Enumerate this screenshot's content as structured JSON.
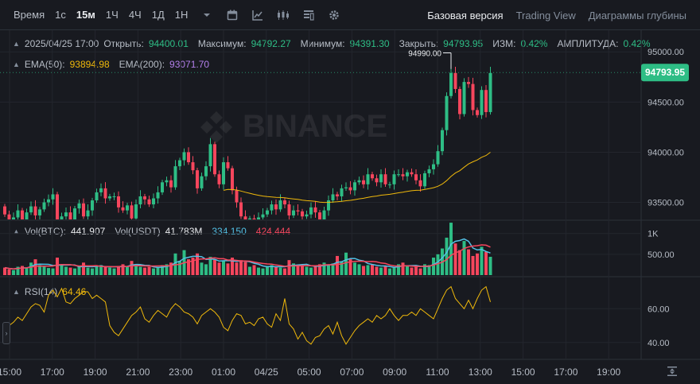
{
  "toolbar": {
    "time_label": "Время",
    "intervals": [
      "1с",
      "15м",
      "1Ч",
      "4Ч",
      "1Д",
      "1Н"
    ],
    "active_interval": "15м",
    "views": [
      "Базовая версия",
      "Trading View",
      "Диаграммы глубины"
    ],
    "active_view": "Базовая версия",
    "icons": [
      "chevron-down-icon",
      "calendar-icon",
      "indicators-icon",
      "candle-type-icon",
      "layout-icon",
      "settings-icon"
    ]
  },
  "ohlc": {
    "date": "2025/04/25 17:00",
    "open_label": "Открыть:",
    "open": "94400.01",
    "high_label": "Максимум:",
    "high": "94792.27",
    "low_label": "Минимум:",
    "low": "94391.30",
    "close_label": "Закрыть:",
    "close": "94793.95",
    "change_label": "ИЗМ:",
    "change": "0.42%",
    "amp_label": "АМПЛИТУДА:",
    "amp": "0.42%"
  },
  "ema": {
    "ema50_label": "EMA(50):",
    "ema50": "93894.98",
    "ema200_label": "EMA(200):",
    "ema200": "93071.70"
  },
  "volume": {
    "label": "Vol(BTC):",
    "btc": "441.907",
    "usdt_label": "Vol(USDT)",
    "usdt": "41.783M",
    "ma1": "334.150",
    "ma2": "424.444"
  },
  "rsi": {
    "label": "RSI(14)",
    "value": "64.46"
  },
  "colors": {
    "up": "#2ebd85",
    "down": "#f6465d",
    "ema50": "#f0b90b",
    "bg": "#181a20",
    "grid": "#23262d"
  },
  "watermark": "BINANCE",
  "chart_data": {
    "type": "candlestick",
    "price_axis": {
      "ticks": [
        93500,
        94000,
        94500,
        95000
      ],
      "labels": [
        "93500.00",
        "94000.00",
        "94500.00",
        "95000.00"
      ],
      "range": [
        93330,
        95200
      ]
    },
    "current_price": "94793.95",
    "high_marker": "94990.00",
    "high_marker_value": 94990,
    "volume_axis": {
      "labels": [
        "500.00",
        "1K"
      ],
      "ticks": [
        500,
        1000
      ],
      "range": [
        0,
        1300
      ]
    },
    "rsi_axis": {
      "labels": [
        "40.00",
        "60.00"
      ],
      "ticks": [
        40,
        60
      ],
      "range": [
        30,
        78
      ]
    },
    "time_labels": [
      "15:00",
      "17:00",
      "19:00",
      "21:00",
      "23:00",
      "01:00",
      "04/25",
      "05:00",
      "07:00",
      "09:00",
      "11:00",
      "13:00",
      "15:00",
      "17:00",
      "19:00"
    ],
    "candles_close": [
      93380,
      93310,
      93350,
      93420,
      93330,
      93400,
      93460,
      93370,
      93430,
      93500,
      93530,
      93580,
      93330,
      93360,
      93400,
      93300,
      93440,
      93490,
      93360,
      93420,
      93520,
      93600,
      93640,
      93540,
      93560,
      93560,
      93450,
      93420,
      93470,
      93340,
      93480,
      93560,
      93530,
      93480,
      93540,
      93600,
      93700,
      93720,
      93650,
      93860,
      93920,
      94000,
      93900,
      93820,
      93640,
      93760,
      93860,
      94080,
      93780,
      93680,
      93900,
      93840,
      93620,
      93500,
      93360,
      93320,
      93340,
      93300,
      93350,
      93380,
      93420,
      93480,
      93430,
      93520,
      93480,
      93370,
      93420,
      93410,
      93360,
      93380,
      93450,
      93400,
      93330,
      93420,
      93520,
      93580,
      93560,
      93640,
      93650,
      93620,
      93700,
      93720,
      93680,
      93780,
      93740,
      93700,
      93780,
      93680,
      93680,
      93780,
      93780,
      93760,
      93800,
      93780,
      93720,
      93660,
      93790,
      93830,
      93880,
      94010,
      94220,
      94560,
      94790,
      94630,
      94380,
      94700,
      94680,
      94420,
      94370,
      94620,
      94400,
      94790
    ],
    "candles_open": [
      93460,
      93380,
      93310,
      93350,
      93420,
      93330,
      93400,
      93460,
      93370,
      93430,
      93500,
      93530,
      93580,
      93330,
      93360,
      93400,
      93300,
      93440,
      93490,
      93360,
      93420,
      93520,
      93600,
      93640,
      93540,
      93560,
      93560,
      93450,
      93420,
      93470,
      93340,
      93480,
      93560,
      93530,
      93480,
      93540,
      93600,
      93700,
      93720,
      93650,
      93860,
      93920,
      94000,
      93900,
      93820,
      93640,
      93760,
      93860,
      94080,
      93780,
      93680,
      93900,
      93840,
      93620,
      93500,
      93360,
      93320,
      93340,
      93300,
      93350,
      93380,
      93420,
      93480,
      93430,
      93520,
      93480,
      93370,
      93420,
      93410,
      93360,
      93380,
      93450,
      93400,
      93330,
      93420,
      93520,
      93580,
      93560,
      93640,
      93650,
      93620,
      93700,
      93720,
      93680,
      93780,
      93740,
      93700,
      93780,
      93680,
      93680,
      93780,
      93780,
      93760,
      93800,
      93780,
      93720,
      93660,
      93790,
      93830,
      93880,
      94010,
      94220,
      94560,
      94790,
      94630,
      94380,
      94700,
      94680,
      94420,
      94370,
      94620,
      94400
    ],
    "volume": [
      180,
      140,
      120,
      200,
      220,
      180,
      300,
      380,
      240,
      200,
      170,
      160,
      420,
      250,
      200,
      180,
      160,
      200,
      300,
      180,
      160,
      220,
      240,
      200,
      180,
      160,
      220,
      260,
      220,
      340,
      240,
      200,
      180,
      200,
      160,
      180,
      240,
      260,
      300,
      520,
      340,
      600,
      380,
      420,
      520,
      300,
      260,
      440,
      380,
      300,
      340,
      280,
      420,
      300,
      360,
      320,
      200,
      240,
      180,
      160,
      220,
      240,
      200,
      180,
      160,
      360,
      280,
      240,
      220,
      200,
      180,
      220,
      260,
      300,
      240,
      280,
      460,
      320,
      540,
      380,
      300,
      260,
      220,
      240,
      260,
      200,
      180,
      220,
      160,
      180,
      260,
      300,
      220,
      180,
      200,
      160,
      260,
      240,
      420,
      500,
      640,
      900,
      1260,
      760,
      600,
      820,
      620,
      460,
      520,
      680,
      560,
      440
    ],
    "rsi": [
      48,
      50,
      52,
      55,
      53,
      57,
      61,
      63,
      62,
      58,
      68,
      71,
      67,
      72,
      64,
      63,
      66,
      68,
      70,
      70,
      66,
      68,
      66,
      64,
      50,
      46,
      44,
      48,
      52,
      56,
      58,
      61,
      54,
      52,
      56,
      59,
      57,
      55,
      60,
      63,
      61,
      58,
      57,
      55,
      51,
      56,
      58,
      60,
      58,
      55,
      49,
      47,
      53,
      57,
      56,
      51,
      52,
      50,
      54,
      55,
      51,
      49,
      57,
      53,
      66,
      51,
      48,
      42,
      46,
      41,
      39,
      43,
      44,
      48,
      50,
      45,
      52,
      44,
      39,
      43,
      47,
      50,
      52,
      54,
      52,
      56,
      54,
      56,
      60,
      56,
      53,
      56,
      56,
      58,
      56,
      60,
      58,
      56,
      54,
      60,
      66,
      71,
      73,
      66,
      63,
      60,
      65,
      60,
      66,
      71,
      73,
      64
    ]
  }
}
